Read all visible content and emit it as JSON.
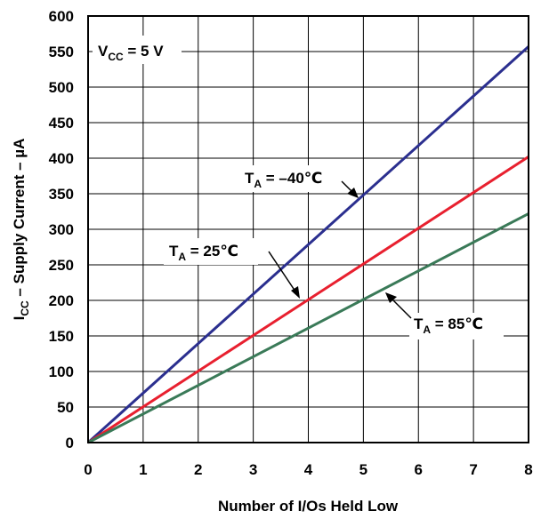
{
  "chart_data": {
    "type": "line",
    "xlabel": "Number of I/Os Held Low",
    "ylabel": {
      "main": "I",
      "sub": "CC",
      "rest": " – Supply Current – µA"
    },
    "xlim": [
      0,
      8
    ],
    "ylim": [
      0,
      600
    ],
    "x_ticks": [
      "0",
      "1",
      "2",
      "3",
      "4",
      "5",
      "6",
      "7",
      "8"
    ],
    "y_ticks": [
      "0",
      "50",
      "100",
      "150",
      "200",
      "250",
      "300",
      "350",
      "400",
      "450",
      "500",
      "550",
      "600"
    ],
    "grid": true,
    "series": [
      {
        "label": {
          "main": "T",
          "sub": "A",
          "rest": " = –40℃"
        },
        "color": "#2b2f8f",
        "x": [
          0,
          8
        ],
        "y": [
          0,
          557
        ]
      },
      {
        "label": {
          "main": "T",
          "sub": "A",
          "rest": " = 25℃"
        },
        "color": "#e8202f",
        "x": [
          0,
          8
        ],
        "y": [
          0,
          402
        ]
      },
      {
        "label": {
          "main": "T",
          "sub": "A",
          "rest": " = 85℃"
        },
        "color": "#3a7a58",
        "x": [
          0,
          8
        ],
        "y": [
          0,
          322
        ]
      }
    ],
    "annotation": {
      "main": "V",
      "sub": "CC",
      "rest": " = 5 V"
    }
  }
}
